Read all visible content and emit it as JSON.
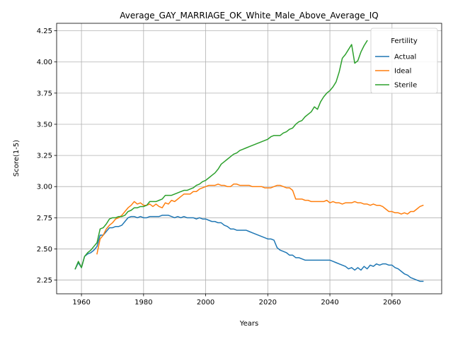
{
  "chart_data": {
    "type": "line",
    "title": "Average_GAY_MARRIAGE_OK_White_Male_Above_Average_IQ",
    "xlabel": "Years",
    "ylabel": "Score(1-5)",
    "xlim": [
      1952,
      2076
    ],
    "ylim": [
      2.14,
      4.31
    ],
    "xticks": [
      1960,
      1980,
      2000,
      2020,
      2040,
      2060
    ],
    "yticks": [
      2.25,
      2.5,
      2.75,
      3.0,
      3.25,
      3.5,
      3.75,
      4.0,
      4.25
    ],
    "ytick_labels": [
      "2.25",
      "2.50",
      "2.75",
      "3.00",
      "3.25",
      "3.50",
      "3.75",
      "4.00",
      "4.25"
    ],
    "grid": true,
    "legend": {
      "title": "Fertility",
      "position": "top-right"
    },
    "series": [
      {
        "name": "Actual",
        "color": "#1f77b4",
        "points": [
          [
            1958,
            2.34
          ],
          [
            1959,
            2.39
          ],
          [
            1960,
            2.35
          ],
          [
            1961,
            2.44
          ],
          [
            1962,
            2.46
          ],
          [
            1963,
            2.47
          ],
          [
            1964,
            2.49
          ],
          [
            1965,
            2.52
          ],
          [
            1966,
            2.61
          ],
          [
            1967,
            2.61
          ],
          [
            1968,
            2.64
          ],
          [
            1969,
            2.67
          ],
          [
            1970,
            2.67
          ],
          [
            1971,
            2.68
          ],
          [
            1972,
            2.68
          ],
          [
            1973,
            2.69
          ],
          [
            1974,
            2.72
          ],
          [
            1975,
            2.75
          ],
          [
            1976,
            2.76
          ],
          [
            1977,
            2.76
          ],
          [
            1978,
            2.75
          ],
          [
            1979,
            2.76
          ],
          [
            1980,
            2.75
          ],
          [
            1981,
            2.75
          ],
          [
            1982,
            2.76
          ],
          [
            1983,
            2.76
          ],
          [
            1984,
            2.76
          ],
          [
            1985,
            2.76
          ],
          [
            1986,
            2.77
          ],
          [
            1987,
            2.77
          ],
          [
            1988,
            2.77
          ],
          [
            1989,
            2.76
          ],
          [
            1990,
            2.75
          ],
          [
            1991,
            2.76
          ],
          [
            1992,
            2.75
          ],
          [
            1993,
            2.76
          ],
          [
            1994,
            2.75
          ],
          [
            1995,
            2.75
          ],
          [
            1996,
            2.75
          ],
          [
            1997,
            2.74
          ],
          [
            1998,
            2.75
          ],
          [
            1999,
            2.74
          ],
          [
            2000,
            2.74
          ],
          [
            2001,
            2.73
          ],
          [
            2002,
            2.72
          ],
          [
            2003,
            2.72
          ],
          [
            2004,
            2.71
          ],
          [
            2005,
            2.71
          ],
          [
            2006,
            2.69
          ],
          [
            2007,
            2.68
          ],
          [
            2008,
            2.66
          ],
          [
            2009,
            2.66
          ],
          [
            2010,
            2.65
          ],
          [
            2011,
            2.65
          ],
          [
            2012,
            2.65
          ],
          [
            2013,
            2.65
          ],
          [
            2014,
            2.64
          ],
          [
            2015,
            2.63
          ],
          [
            2016,
            2.62
          ],
          [
            2017,
            2.61
          ],
          [
            2018,
            2.6
          ],
          [
            2019,
            2.59
          ],
          [
            2020,
            2.58
          ],
          [
            2021,
            2.58
          ],
          [
            2022,
            2.57
          ],
          [
            2023,
            2.51
          ],
          [
            2024,
            2.49
          ],
          [
            2025,
            2.48
          ],
          [
            2026,
            2.47
          ],
          [
            2027,
            2.45
          ],
          [
            2028,
            2.45
          ],
          [
            2029,
            2.43
          ],
          [
            2030,
            2.43
          ],
          [
            2031,
            2.42
          ],
          [
            2032,
            2.41
          ],
          [
            2033,
            2.41
          ],
          [
            2034,
            2.41
          ],
          [
            2035,
            2.41
          ],
          [
            2036,
            2.41
          ],
          [
            2037,
            2.41
          ],
          [
            2038,
            2.41
          ],
          [
            2039,
            2.41
          ],
          [
            2040,
            2.41
          ],
          [
            2041,
            2.4
          ],
          [
            2042,
            2.39
          ],
          [
            2043,
            2.38
          ],
          [
            2044,
            2.37
          ],
          [
            2045,
            2.36
          ],
          [
            2046,
            2.34
          ],
          [
            2047,
            2.35
          ],
          [
            2048,
            2.33
          ],
          [
            2049,
            2.35
          ],
          [
            2050,
            2.33
          ],
          [
            2051,
            2.36
          ],
          [
            2052,
            2.34
          ],
          [
            2053,
            2.37
          ],
          [
            2054,
            2.36
          ],
          [
            2055,
            2.38
          ],
          [
            2056,
            2.37
          ],
          [
            2057,
            2.38
          ],
          [
            2058,
            2.38
          ],
          [
            2059,
            2.37
          ],
          [
            2060,
            2.37
          ],
          [
            2061,
            2.35
          ],
          [
            2062,
            2.34
          ],
          [
            2063,
            2.32
          ],
          [
            2064,
            2.3
          ],
          [
            2065,
            2.29
          ],
          [
            2066,
            2.27
          ],
          [
            2067,
            2.26
          ],
          [
            2068,
            2.25
          ],
          [
            2069,
            2.24
          ],
          [
            2070,
            2.24
          ]
        ]
      },
      {
        "name": "Ideal",
        "color": "#ff7f0e",
        "points": [
          [
            1965,
            2.46
          ],
          [
            1966,
            2.58
          ],
          [
            1967,
            2.61
          ],
          [
            1968,
            2.66
          ],
          [
            1969,
            2.69
          ],
          [
            1970,
            2.71
          ],
          [
            1971,
            2.74
          ],
          [
            1972,
            2.75
          ],
          [
            1973,
            2.77
          ],
          [
            1974,
            2.8
          ],
          [
            1975,
            2.83
          ],
          [
            1976,
            2.85
          ],
          [
            1977,
            2.88
          ],
          [
            1978,
            2.86
          ],
          [
            1979,
            2.87
          ],
          [
            1980,
            2.85
          ],
          [
            1981,
            2.85
          ],
          [
            1982,
            2.86
          ],
          [
            1983,
            2.84
          ],
          [
            1984,
            2.86
          ],
          [
            1985,
            2.84
          ],
          [
            1986,
            2.83
          ],
          [
            1987,
            2.87
          ],
          [
            1988,
            2.86
          ],
          [
            1989,
            2.89
          ],
          [
            1990,
            2.88
          ],
          [
            1991,
            2.9
          ],
          [
            1992,
            2.92
          ],
          [
            1993,
            2.94
          ],
          [
            1994,
            2.94
          ],
          [
            1995,
            2.94
          ],
          [
            1996,
            2.96
          ],
          [
            1997,
            2.96
          ],
          [
            1998,
            2.98
          ],
          [
            1999,
            2.99
          ],
          [
            2000,
            3.0
          ],
          [
            2001,
            3.01
          ],
          [
            2002,
            3.01
          ],
          [
            2003,
            3.01
          ],
          [
            2004,
            3.02
          ],
          [
            2005,
            3.01
          ],
          [
            2006,
            3.01
          ],
          [
            2007,
            3.0
          ],
          [
            2008,
            3.0
          ],
          [
            2009,
            3.02
          ],
          [
            2010,
            3.02
          ],
          [
            2011,
            3.01
          ],
          [
            2012,
            3.01
          ],
          [
            2013,
            3.01
          ],
          [
            2014,
            3.01
          ],
          [
            2015,
            3.0
          ],
          [
            2016,
            3.0
          ],
          [
            2017,
            3.0
          ],
          [
            2018,
            3.0
          ],
          [
            2019,
            2.99
          ],
          [
            2020,
            2.99
          ],
          [
            2021,
            2.99
          ],
          [
            2022,
            3.0
          ],
          [
            2023,
            3.01
          ],
          [
            2024,
            3.01
          ],
          [
            2025,
            3.0
          ],
          [
            2026,
            2.99
          ],
          [
            2027,
            2.99
          ],
          [
            2028,
            2.97
          ],
          [
            2029,
            2.9
          ],
          [
            2030,
            2.9
          ],
          [
            2031,
            2.9
          ],
          [
            2032,
            2.89
          ],
          [
            2033,
            2.89
          ],
          [
            2034,
            2.88
          ],
          [
            2035,
            2.88
          ],
          [
            2036,
            2.88
          ],
          [
            2037,
            2.88
          ],
          [
            2038,
            2.88
          ],
          [
            2039,
            2.89
          ],
          [
            2040,
            2.87
          ],
          [
            2041,
            2.88
          ],
          [
            2042,
            2.87
          ],
          [
            2043,
            2.87
          ],
          [
            2044,
            2.86
          ],
          [
            2045,
            2.87
          ],
          [
            2046,
            2.87
          ],
          [
            2047,
            2.87
          ],
          [
            2048,
            2.88
          ],
          [
            2049,
            2.87
          ],
          [
            2050,
            2.87
          ],
          [
            2051,
            2.86
          ],
          [
            2052,
            2.86
          ],
          [
            2053,
            2.85
          ],
          [
            2054,
            2.86
          ],
          [
            2055,
            2.85
          ],
          [
            2056,
            2.85
          ],
          [
            2057,
            2.84
          ],
          [
            2058,
            2.82
          ],
          [
            2059,
            2.8
          ],
          [
            2060,
            2.8
          ],
          [
            2061,
            2.79
          ],
          [
            2062,
            2.79
          ],
          [
            2063,
            2.78
          ],
          [
            2064,
            2.79
          ],
          [
            2065,
            2.78
          ],
          [
            2066,
            2.8
          ],
          [
            2067,
            2.8
          ],
          [
            2068,
            2.82
          ],
          [
            2069,
            2.84
          ],
          [
            2070,
            2.85
          ]
        ]
      },
      {
        "name": "Sterile",
        "color": "#2ca02c",
        "points": [
          [
            1958,
            2.34
          ],
          [
            1959,
            2.4
          ],
          [
            1960,
            2.35
          ],
          [
            1961,
            2.44
          ],
          [
            1962,
            2.47
          ],
          [
            1963,
            2.49
          ],
          [
            1964,
            2.52
          ],
          [
            1965,
            2.55
          ],
          [
            1966,
            2.66
          ],
          [
            1967,
            2.67
          ],
          [
            1968,
            2.7
          ],
          [
            1969,
            2.74
          ],
          [
            1970,
            2.75
          ],
          [
            1971,
            2.75
          ],
          [
            1972,
            2.76
          ],
          [
            1973,
            2.76
          ],
          [
            1974,
            2.77
          ],
          [
            1975,
            2.8
          ],
          [
            1976,
            2.81
          ],
          [
            1977,
            2.83
          ],
          [
            1978,
            2.83
          ],
          [
            1979,
            2.84
          ],
          [
            1980,
            2.84
          ],
          [
            1981,
            2.85
          ],
          [
            1982,
            2.88
          ],
          [
            1983,
            2.88
          ],
          [
            1984,
            2.88
          ],
          [
            1985,
            2.89
          ],
          [
            1986,
            2.9
          ],
          [
            1987,
            2.93
          ],
          [
            1988,
            2.93
          ],
          [
            1989,
            2.93
          ],
          [
            1990,
            2.94
          ],
          [
            1991,
            2.95
          ],
          [
            1992,
            2.96
          ],
          [
            1993,
            2.97
          ],
          [
            1994,
            2.97
          ],
          [
            1995,
            2.98
          ],
          [
            1996,
            2.99
          ],
          [
            1997,
            3.01
          ],
          [
            1998,
            3.02
          ],
          [
            1999,
            3.04
          ],
          [
            2000,
            3.05
          ],
          [
            2001,
            3.07
          ],
          [
            2002,
            3.09
          ],
          [
            2003,
            3.11
          ],
          [
            2004,
            3.14
          ],
          [
            2005,
            3.18
          ],
          [
            2006,
            3.2
          ],
          [
            2007,
            3.22
          ],
          [
            2008,
            3.24
          ],
          [
            2009,
            3.26
          ],
          [
            2010,
            3.27
          ],
          [
            2011,
            3.29
          ],
          [
            2012,
            3.3
          ],
          [
            2013,
            3.31
          ],
          [
            2014,
            3.32
          ],
          [
            2015,
            3.33
          ],
          [
            2016,
            3.34
          ],
          [
            2017,
            3.35
          ],
          [
            2018,
            3.36
          ],
          [
            2019,
            3.37
          ],
          [
            2020,
            3.38
          ],
          [
            2021,
            3.4
          ],
          [
            2022,
            3.41
          ],
          [
            2023,
            3.41
          ],
          [
            2024,
            3.41
          ],
          [
            2025,
            3.43
          ],
          [
            2026,
            3.44
          ],
          [
            2027,
            3.46
          ],
          [
            2028,
            3.47
          ],
          [
            2029,
            3.5
          ],
          [
            2030,
            3.52
          ],
          [
            2031,
            3.53
          ],
          [
            2032,
            3.56
          ],
          [
            2033,
            3.58
          ],
          [
            2034,
            3.6
          ],
          [
            2035,
            3.64
          ],
          [
            2036,
            3.62
          ],
          [
            2037,
            3.68
          ],
          [
            2038,
            3.72
          ],
          [
            2039,
            3.75
          ],
          [
            2040,
            3.77
          ],
          [
            2041,
            3.8
          ],
          [
            2042,
            3.84
          ],
          [
            2043,
            3.92
          ],
          [
            2044,
            4.03
          ],
          [
            2045,
            4.06
          ],
          [
            2046,
            4.1
          ],
          [
            2047,
            4.14
          ],
          [
            2048,
            3.99
          ],
          [
            2049,
            4.01
          ],
          [
            2050,
            4.08
          ],
          [
            2051,
            4.13
          ],
          [
            2052,
            4.17
          ]
        ]
      }
    ]
  }
}
